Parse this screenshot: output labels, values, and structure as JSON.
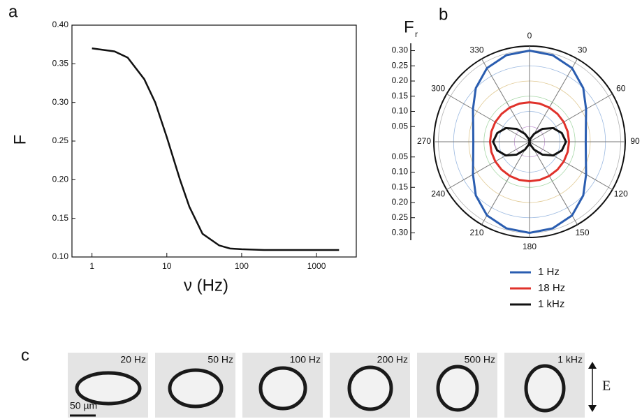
{
  "chart_data": [
    {
      "type": "line",
      "label": "a",
      "ylabel": "F",
      "xlabel": "ν (Hz)",
      "log_x": true,
      "x": [
        1,
        2,
        3,
        5,
        7,
        10,
        15,
        20,
        30,
        50,
        70,
        100,
        200,
        500,
        1000,
        2000
      ],
      "series": [
        {
          "name": null,
          "color": "#111111",
          "values": [
            0.37,
            0.366,
            0.358,
            0.33,
            0.3,
            0.255,
            0.2,
            0.165,
            0.13,
            0.115,
            0.111,
            0.11,
            0.109,
            0.109,
            0.109,
            0.109
          ]
        }
      ],
      "xlim": [
        0.54,
        3400
      ],
      "xticks": [
        1,
        10,
        100,
        1000
      ],
      "ylim": [
        0.1,
        0.4
      ],
      "yticks": [
        {
          "value": 0.1,
          "label": "0.10"
        },
        {
          "value": 0.15,
          "label": "0.15"
        },
        {
          "value": 0.2,
          "label": "0.20"
        },
        {
          "value": 0.25,
          "label": "0.25"
        },
        {
          "value": 0.3,
          "label": "0.30"
        },
        {
          "value": 0.35,
          "label": "0.35"
        },
        {
          "value": 0.4,
          "label": "0.40"
        }
      ]
    },
    {
      "type": "polar",
      "label": "b",
      "radial_axis_title": "F",
      "radial_axis_subscript": "r",
      "theta": [
        0,
        15,
        30,
        45,
        60,
        75,
        90,
        105,
        120,
        135,
        150,
        165,
        180,
        195,
        210,
        225,
        240,
        255,
        270,
        285,
        300,
        315,
        330,
        345
      ],
      "series": [
        {
          "name": "1 Hz",
          "color": "#2a5db0",
          "values": [
            0.3,
            0.295,
            0.28,
            0.25,
            0.215,
            0.192,
            0.185,
            0.192,
            0.215,
            0.25,
            0.28,
            0.295,
            0.3,
            0.295,
            0.28,
            0.25,
            0.215,
            0.192,
            0.185,
            0.192,
            0.215,
            0.25,
            0.28,
            0.295
          ]
        },
        {
          "name": "18 Hz",
          "color": "#e0322b",
          "values": [
            0.13,
            0.13,
            0.13,
            0.13,
            0.13,
            0.13,
            0.13,
            0.13,
            0.13,
            0.13,
            0.13,
            0.13,
            0.13,
            0.13,
            0.13,
            0.13,
            0.13,
            0.13,
            0.13,
            0.13,
            0.13,
            0.13,
            0.13,
            0.13
          ]
        },
        {
          "name": "1 kHz",
          "color": "#111111",
          "values": [
            0,
            0.01,
            0.03,
            0.06,
            0.09,
            0.11,
            0.12,
            0.11,
            0.09,
            0.06,
            0.03,
            0.01,
            0,
            0.01,
            0.03,
            0.06,
            0.09,
            0.11,
            0.12,
            0.11,
            0.09,
            0.06,
            0.03,
            0.01
          ]
        }
      ],
      "rlim": [
        0,
        0.315
      ],
      "rticks": [
        {
          "value": 0.05,
          "label": "0.05"
        },
        {
          "value": 0.1,
          "label": "0.10"
        },
        {
          "value": 0.15,
          "label": "0.15"
        },
        {
          "value": 0.2,
          "label": "0.20"
        },
        {
          "value": 0.25,
          "label": "0.25"
        },
        {
          "value": 0.3,
          "label": "0.30"
        }
      ],
      "angle_ticks": [
        0,
        30,
        60,
        90,
        120,
        150,
        180,
        210,
        240,
        270,
        300,
        330
      ]
    }
  ],
  "panel_c": {
    "label": "c",
    "frames": [
      "20 Hz",
      "50 Hz",
      "100 Hz",
      "200 Hz",
      "500 Hz",
      "1 kHz"
    ],
    "scale_bar": "50 µm",
    "field": "E"
  }
}
